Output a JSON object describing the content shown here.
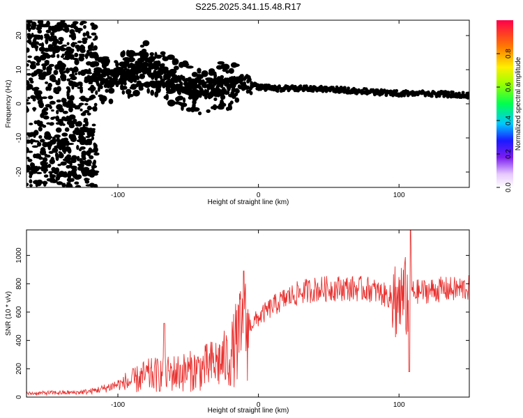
{
  "title": "S225.2025.341.15.48.R17",
  "chart_data": [
    {
      "type": "heatmap",
      "xlabel": "Height of straight line (km)",
      "ylabel": "Frequency (Hz)",
      "xlim": [
        -165,
        150
      ],
      "ylim": [
        -24.5,
        24.5
      ],
      "xticks": [
        -100,
        0,
        100
      ],
      "yticks": [
        -20,
        -10,
        0,
        10,
        20
      ],
      "ridge": {
        "x": [
          -115,
          -100,
          -90,
          -80,
          -70,
          -60,
          -50,
          -40,
          -30,
          -20,
          -10,
          0,
          10,
          20,
          40,
          60,
          80,
          100,
          120,
          150
        ],
        "frequency": [
          7,
          8,
          9,
          11,
          9,
          6,
          5,
          4,
          5,
          5,
          6,
          5,
          4.5,
          4.5,
          4.5,
          4,
          3.5,
          3,
          3,
          2.5
        ]
      },
      "colorbar": {
        "label": "Normalized spectral amplitude",
        "range": [
          0,
          1
        ],
        "ticks": [
          0.0,
          0.2,
          0.4,
          0.6,
          0.8
        ],
        "tick_labels": [
          "0.0",
          "0.2",
          "0.4",
          "0.6",
          "0.8"
        ]
      }
    },
    {
      "type": "line",
      "xlabel": "Height of straight line (km)",
      "ylabel": "SNR (10 * v/v)",
      "xlim": [
        -165,
        150
      ],
      "ylim": [
        0,
        1180
      ],
      "xticks": [
        -100,
        0,
        100
      ],
      "yticks": [
        0,
        200,
        400,
        600,
        800,
        1000
      ],
      "color": "#e8312f",
      "x": [
        -165,
        -150,
        -130,
        -120,
        -110,
        -100,
        -90,
        -80,
        -70,
        -60,
        -50,
        -40,
        -30,
        -20,
        -15,
        -10,
        0,
        10,
        20,
        30,
        40,
        60,
        80,
        90,
        100,
        105,
        110,
        120,
        130,
        140,
        150
      ],
      "y": [
        25,
        30,
        32,
        40,
        60,
        90,
        110,
        150,
        160,
        170,
        180,
        200,
        240,
        280,
        400,
        470,
        560,
        640,
        700,
        740,
        760,
        770,
        760,
        720,
        690,
        700,
        740,
        750,
        760,
        760,
        770
      ]
    }
  ]
}
